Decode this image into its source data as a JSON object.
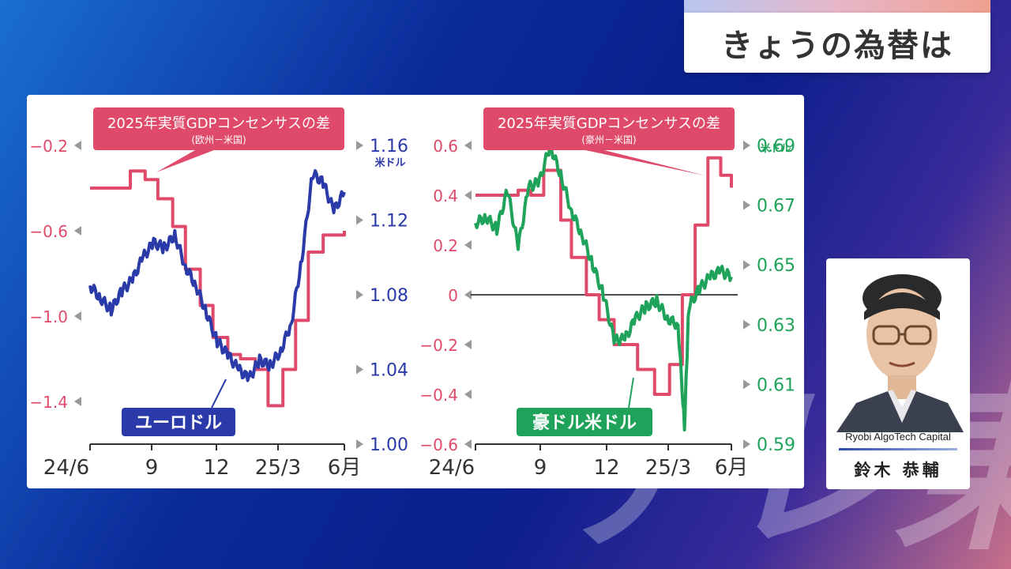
{
  "header": {
    "title": "きょうの為替は"
  },
  "presenter": {
    "company": "Ryobi AlgoTech Capital",
    "name": "鈴木 恭輔"
  },
  "watermark": "テレ東",
  "colors": {
    "gdp": "#e04a6a",
    "eurusd": "#2a3aa8",
    "audusd": "#1fa35a",
    "zero_line": "#111111",
    "arrow": "#999999"
  },
  "chart_data": [
    {
      "type": "line",
      "callout": {
        "title": "2025年実質GDPコンセンサスの差",
        "subtitle": "(欧州－米国)"
      },
      "x_ticks": [
        "24/6",
        "9",
        "12",
        "25/3",
        "6月"
      ],
      "x_range": [
        "2024-06",
        "2025-06"
      ],
      "left_axis": {
        "ticks": [
          "−0.2",
          "−0.6",
          "−1.0",
          "−1.4"
        ],
        "range": [
          -1.6,
          -0.2
        ]
      },
      "right_axis": {
        "unit": "米ドル",
        "ticks": [
          "1.16",
          "1.12",
          "1.08",
          "1.04",
          "1.00"
        ],
        "range": [
          1.0,
          1.16
        ]
      },
      "series": [
        {
          "name": "2025年実質GDPコンセンサスの差",
          "axis": "left",
          "x": [
            0,
            1.3,
            1.9,
            2.6,
            3.2,
            3.9,
            4.5,
            5.2,
            5.8,
            6.5,
            7.1,
            7.8,
            8.4,
            9.1,
            9.7,
            10.3,
            11,
            12
          ],
          "values": [
            -0.4,
            -0.4,
            -0.32,
            -0.36,
            -0.45,
            -0.58,
            -0.78,
            -0.95,
            -1.1,
            -1.18,
            -1.2,
            -1.25,
            -1.42,
            -1.25,
            -1.02,
            -0.7,
            -0.62,
            -0.6
          ]
        },
        {
          "name": "ユーロドル",
          "axis": "right",
          "x": [
            0,
            0.5,
            1,
            1.5,
            2,
            2.5,
            3,
            3.5,
            4,
            4.5,
            5,
            5.5,
            6,
            6.5,
            7,
            7.5,
            8,
            8.5,
            9,
            9.5,
            10,
            10.5,
            11,
            11.5,
            12
          ],
          "values": [
            1.085,
            1.078,
            1.072,
            1.082,
            1.088,
            1.1,
            1.108,
            1.105,
            1.112,
            1.095,
            1.085,
            1.07,
            1.055,
            1.048,
            1.04,
            1.035,
            1.045,
            1.042,
            1.05,
            1.065,
            1.1,
            1.145,
            1.14,
            1.125,
            1.135
          ]
        }
      ],
      "label": "ユーロドル"
    },
    {
      "type": "line",
      "callout": {
        "title": "2025年実質GDPコンセンサスの差",
        "subtitle": "(豪州－米国)"
      },
      "x_ticks": [
        "24/6",
        "9",
        "12",
        "25/3",
        "6月"
      ],
      "x_range": [
        "2024-06",
        "2025-06"
      ],
      "left_axis": {
        "ticks": [
          "0.6",
          "0.4",
          "0.2",
          "0",
          "−0.2",
          "−0.4",
          "−0.6"
        ],
        "range": [
          -0.6,
          0.6
        ]
      },
      "right_axis": {
        "unit": "米ドル",
        "ticks": [
          "0.69",
          "0.67",
          "0.65",
          "0.63",
          "0.61",
          "0.59"
        ],
        "range": [
          0.59,
          0.69
        ]
      },
      "series": [
        {
          "name": "2025年実質GDPコンセンサスの差",
          "axis": "left",
          "x": [
            0,
            1.3,
            2,
            2.6,
            3.2,
            4,
            4.5,
            5.2,
            5.8,
            6.5,
            7,
            7.6,
            8.4,
            9.1,
            9.7,
            10.3,
            10.9,
            11.5,
            12
          ],
          "values": [
            0.4,
            0.4,
            0.42,
            0.4,
            0.5,
            0.3,
            0.15,
            0.0,
            -0.1,
            -0.2,
            -0.2,
            -0.3,
            -0.4,
            -0.28,
            0.0,
            0.28,
            0.55,
            0.48,
            0.43
          ]
        },
        {
          "name": "豪ドル米ドル",
          "axis": "right",
          "x": [
            0,
            0.5,
            1,
            1.5,
            2,
            2.5,
            3,
            3.5,
            4,
            4.5,
            5,
            5.5,
            6,
            6.5,
            7,
            7.5,
            8,
            8.5,
            9,
            9.5,
            9.8,
            10,
            10.5,
            11,
            11.5,
            12
          ],
          "values": [
            0.664,
            0.666,
            0.662,
            0.675,
            0.656,
            0.676,
            0.678,
            0.69,
            0.68,
            0.668,
            0.66,
            0.65,
            0.64,
            0.625,
            0.625,
            0.632,
            0.636,
            0.638,
            0.632,
            0.63,
            0.596,
            0.636,
            0.642,
            0.646,
            0.648,
            0.646
          ]
        }
      ],
      "label": "豪ドル米ドル"
    }
  ]
}
